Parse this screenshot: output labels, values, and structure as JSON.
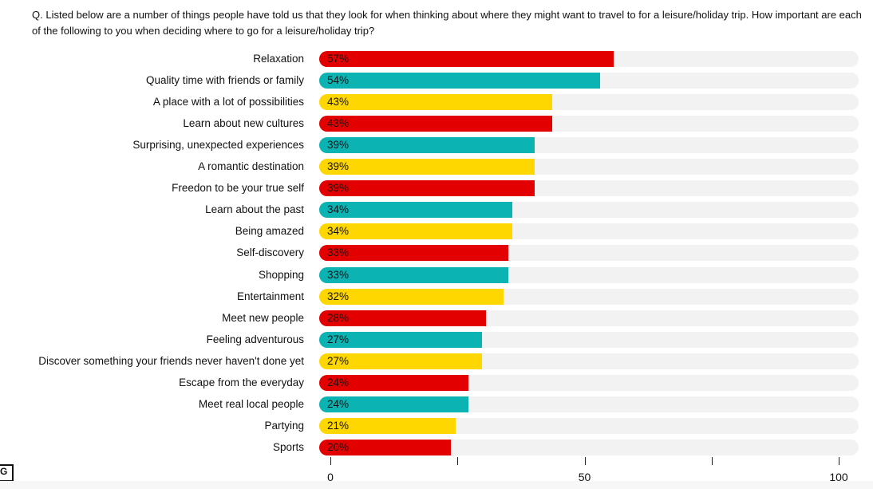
{
  "chart_data": {
    "type": "bar",
    "title": "Q. Listed below are a number of things people have told us that they look for when thinking about where they might want to travel to for a leisure/holiday trip. How important are each of the following to you when deciding where to go for a leisure/holiday trip?",
    "categories": [
      "Relaxation",
      "Quality time with friends or family",
      "A place with a lot of possibilities",
      "Learn about new cultures",
      "Surprising, unexpected experiences",
      "A romantic destination",
      "Freedon to be your true self",
      "Learn about the past",
      "Being amazed",
      "Self-discovery",
      "Shopping",
      "Entertainment",
      "Meet new people",
      "Feeling adventurous",
      "Discover something your friends never haven't done yet",
      "Escape from the everyday",
      "Meet real local people",
      "Partying",
      "Sports"
    ],
    "values": [
      57,
      54,
      43,
      43,
      39,
      39,
      39,
      34,
      34,
      33,
      33,
      32,
      28,
      27,
      27,
      24,
      24,
      21,
      20
    ],
    "value_labels": [
      "57%",
      "54%",
      "43%",
      "43%",
      "39%",
      "39%",
      "39%",
      "34%",
      "34%",
      "33%",
      "33%",
      "32%",
      "28%",
      "27%",
      "27%",
      "24%",
      "24%",
      "21%",
      "20%"
    ],
    "colors": [
      "#e30000",
      "#0bb3b3",
      "#ffd700",
      "#e30000",
      "#0bb3b3",
      "#ffd700",
      "#e30000",
      "#0bb3b3",
      "#ffd700",
      "#e30000",
      "#0bb3b3",
      "#ffd700",
      "#e30000",
      "#0bb3b3",
      "#ffd700",
      "#e30000",
      "#0bb3b3",
      "#ffd700",
      "#e30000"
    ],
    "xlim": [
      0,
      100
    ],
    "xticks": [
      "0",
      "50",
      "100"
    ],
    "xlabel": "",
    "ylabel": ""
  },
  "logo": "G"
}
